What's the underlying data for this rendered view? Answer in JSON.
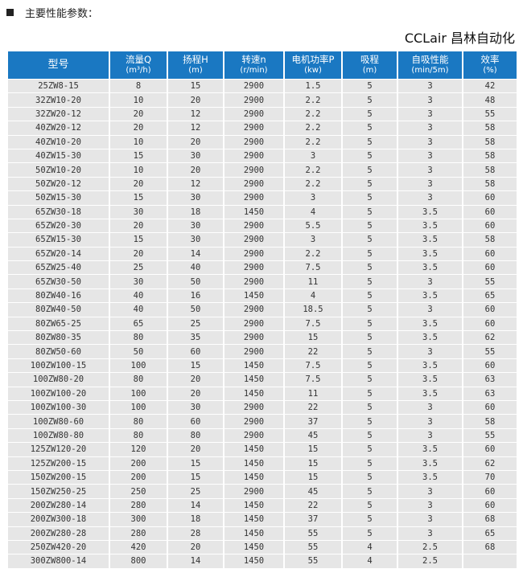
{
  "heading": "主要性能参数：",
  "columns": [
    {
      "label": "型号",
      "unit": ""
    },
    {
      "label": "流量Q",
      "unit": "(m³/h)"
    },
    {
      "label": "扬程H",
      "unit": "(m)"
    },
    {
      "label": "转速n",
      "unit": "(r/min)"
    },
    {
      "label": "电机功率P",
      "unit": "(kw)"
    },
    {
      "label": "吸程",
      "unit": "(m)"
    },
    {
      "label": "自吸性能",
      "unit": "(min/5m)"
    },
    {
      "label": "效率",
      "unit": "(%)"
    }
  ],
  "rows": [
    [
      "25ZW8-15",
      "8",
      "15",
      "2900",
      "1.5",
      "5",
      "3",
      "42"
    ],
    [
      "32ZW10-20",
      "10",
      "20",
      "2900",
      "2.2",
      "5",
      "3",
      "48"
    ],
    [
      "32ZW20-12",
      "20",
      "12",
      "2900",
      "2.2",
      "5",
      "3",
      "55"
    ],
    [
      "40ZW20-12",
      "20",
      "12",
      "2900",
      "2.2",
      "5",
      "3",
      "58"
    ],
    [
      "40ZW10-20",
      "10",
      "20",
      "2900",
      "2.2",
      "5",
      "3",
      "58"
    ],
    [
      "40ZW15-30",
      "15",
      "30",
      "2900",
      "3",
      "5",
      "3",
      "58"
    ],
    [
      "50ZW10-20",
      "10",
      "20",
      "2900",
      "2.2",
      "5",
      "3",
      "58"
    ],
    [
      "50ZW20-12",
      "20",
      "12",
      "2900",
      "2.2",
      "5",
      "3",
      "58"
    ],
    [
      "50ZW15-30",
      "15",
      "30",
      "2900",
      "3",
      "5",
      "3",
      "60"
    ],
    [
      "65ZW30-18",
      "30",
      "18",
      "1450",
      "4",
      "5",
      "3.5",
      "60"
    ],
    [
      "65ZW20-30",
      "20",
      "30",
      "2900",
      "5.5",
      "5",
      "3.5",
      "60"
    ],
    [
      "65ZW15-30",
      "15",
      "30",
      "2900",
      "3",
      "5",
      "3.5",
      "58"
    ],
    [
      "65ZW20-14",
      "20",
      "14",
      "2900",
      "2.2",
      "5",
      "3.5",
      "60"
    ],
    [
      "65ZW25-40",
      "25",
      "40",
      "2900",
      "7.5",
      "5",
      "3.5",
      "60"
    ],
    [
      "65ZW30-50",
      "30",
      "50",
      "2900",
      "11",
      "5",
      "3",
      "55"
    ],
    [
      "80ZW40-16",
      "40",
      "16",
      "1450",
      "4",
      "5",
      "3.5",
      "65"
    ],
    [
      "80ZW40-50",
      "40",
      "50",
      "2900",
      "18.5",
      "5",
      "3",
      "60"
    ],
    [
      "80ZW65-25",
      "65",
      "25",
      "2900",
      "7.5",
      "5",
      "3.5",
      "60"
    ],
    [
      "80ZW80-35",
      "80",
      "35",
      "2900",
      "15",
      "5",
      "3.5",
      "62"
    ],
    [
      "80ZW50-60",
      "50",
      "60",
      "2900",
      "22",
      "5",
      "3",
      "55"
    ],
    [
      "100ZW100-15",
      "100",
      "15",
      "1450",
      "7.5",
      "5",
      "3.5",
      "60"
    ],
    [
      "100ZW80-20",
      "80",
      "20",
      "1450",
      "7.5",
      "5",
      "3.5",
      "63"
    ],
    [
      "100ZW100-20",
      "100",
      "20",
      "1450",
      "11",
      "5",
      "3.5",
      "63"
    ],
    [
      "100ZW100-30",
      "100",
      "30",
      "2900",
      "22",
      "5",
      "3",
      "60"
    ],
    [
      "100ZW80-60",
      "80",
      "60",
      "2900",
      "37",
      "5",
      "3",
      "58"
    ],
    [
      "100ZW80-80",
      "80",
      "80",
      "2900",
      "45",
      "5",
      "3",
      "55"
    ],
    [
      "125ZW120-20",
      "120",
      "20",
      "1450",
      "15",
      "5",
      "3.5",
      "60"
    ],
    [
      "125ZW200-15",
      "200",
      "15",
      "1450",
      "15",
      "5",
      "3.5",
      "62"
    ],
    [
      "150ZW200-15",
      "200",
      "15",
      "1450",
      "15",
      "5",
      "3.5",
      "70"
    ],
    [
      "150ZW250-25",
      "250",
      "25",
      "2900",
      "45",
      "5",
      "3",
      "60"
    ],
    [
      "200ZW280-14",
      "280",
      "14",
      "1450",
      "22",
      "5",
      "3",
      "60"
    ],
    [
      "200ZW300-18",
      "300",
      "18",
      "1450",
      "37",
      "5",
      "3",
      "68"
    ],
    [
      "200ZW280-28",
      "280",
      "28",
      "1450",
      "55",
      "5",
      "3",
      "65"
    ],
    [
      "250ZW420-20",
      "420",
      "20",
      "1450",
      "55",
      "4",
      "2.5",
      "68"
    ],
    [
      "300ZW800-14",
      "800",
      "14",
      "1450",
      "55",
      "4",
      "2.5",
      ""
    ]
  ],
  "watermark": "CCLair 昌林自动化",
  "colors": {
    "header_bg": "#1a78c2",
    "cell_bg": "#e6e6e6"
  }
}
